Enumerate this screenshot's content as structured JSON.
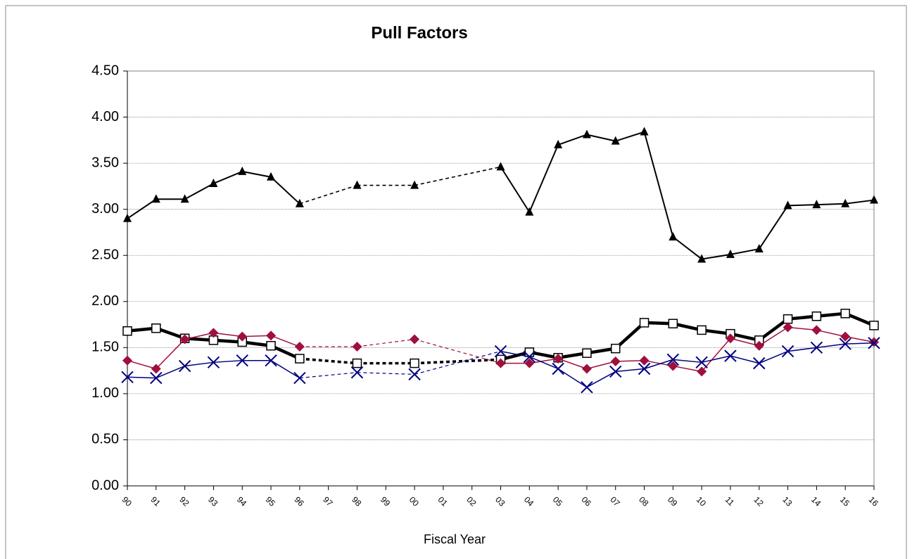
{
  "chart_data": {
    "type": "line",
    "title": "Pull Factors",
    "x_label": "Fiscal Year",
    "categories": [
      "90",
      "91",
      "92",
      "93",
      "94",
      "95",
      "96",
      "97",
      "98",
      "99",
      "00",
      "01",
      "02",
      "03",
      "04",
      "05",
      "06",
      "07",
      "08",
      "09",
      "10",
      "11",
      "12",
      "13",
      "14",
      "15",
      "16"
    ],
    "ylim": [
      0,
      4.5
    ],
    "yticks": [
      {
        "value": 0,
        "label": "0.00"
      },
      {
        "value": 0.5,
        "label": "0.50"
      },
      {
        "value": 1,
        "label": "1.00"
      },
      {
        "value": 1.5,
        "label": "1.50"
      },
      {
        "value": 2,
        "label": "2.00"
      },
      {
        "value": 2.5,
        "label": "2.50"
      },
      {
        "value": 3,
        "label": "3.00"
      },
      {
        "value": 3.5,
        "label": "3.50"
      },
      {
        "value": 4,
        "label": "4.00"
      },
      {
        "value": 4.5,
        "label": "4.50"
      }
    ],
    "grid": true,
    "series": [
      {
        "color": "#000000",
        "marker": "triangle",
        "line_width": 2,
        "values": [
          2.9,
          3.11,
          3.11,
          3.28,
          3.41,
          3.35,
          3.06,
          null,
          3.26,
          null,
          3.26,
          null,
          null,
          3.46,
          2.97,
          3.7,
          3.81,
          3.74,
          3.84,
          2.7,
          2.46,
          2.51,
          2.57,
          3.04,
          3.05,
          3.06,
          3.1
        ]
      },
      {
        "color": "#000000",
        "marker": "square",
        "line_width": 4.5,
        "values": [
          1.68,
          1.71,
          1.6,
          1.58,
          1.56,
          1.52,
          1.38,
          null,
          1.33,
          null,
          1.33,
          null,
          null,
          1.37,
          1.45,
          1.39,
          1.44,
          1.49,
          1.77,
          1.76,
          1.69,
          1.65,
          1.58,
          1.81,
          1.84,
          1.87,
          1.74
        ]
      },
      {
        "color": "#a0103c",
        "marker": "diamond",
        "line_width": 1.5,
        "values": [
          1.36,
          1.27,
          1.59,
          1.66,
          1.62,
          1.63,
          1.51,
          null,
          1.51,
          null,
          1.59,
          null,
          null,
          1.33,
          1.33,
          1.38,
          1.27,
          1.35,
          1.36,
          1.3,
          1.24,
          1.6,
          1.52,
          1.72,
          1.69,
          1.62,
          1.56
        ]
      },
      {
        "color": "#000080",
        "marker": "x",
        "line_width": 1.5,
        "values": [
          1.18,
          1.17,
          1.3,
          1.34,
          1.36,
          1.36,
          1.17,
          null,
          1.23,
          null,
          1.21,
          null,
          null,
          1.46,
          1.4,
          1.27,
          1.07,
          1.24,
          1.27,
          1.37,
          1.34,
          1.41,
          1.33,
          1.46,
          1.5,
          1.54,
          1.55
        ]
      }
    ]
  }
}
